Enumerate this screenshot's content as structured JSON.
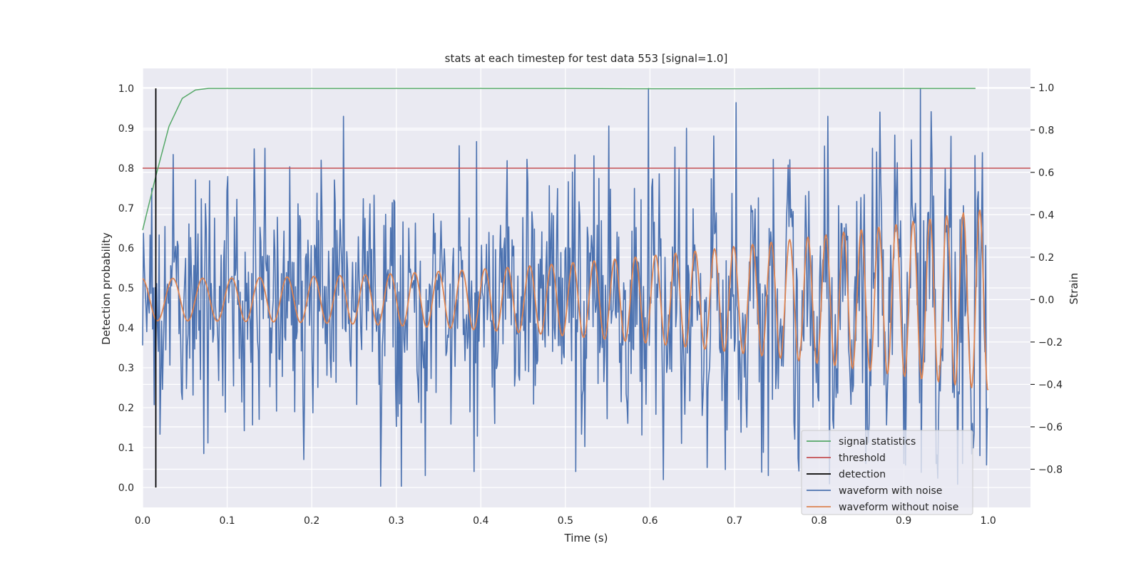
{
  "chart_data": {
    "type": "line",
    "title": "stats at each timestep for test data 553 [signal=1.0]",
    "xlabel": "Time (s)",
    "ylabel": "Detection probability",
    "y2label": "Strain",
    "xlim": [
      0.0,
      1.05
    ],
    "ylim": [
      -0.05,
      1.05
    ],
    "y2lim": [
      -0.98,
      1.09
    ],
    "xticks": [
      "0.0",
      "0.1",
      "0.2",
      "0.3",
      "0.4",
      "0.5",
      "0.6",
      "0.7",
      "0.8",
      "0.9",
      "1.0"
    ],
    "yticks": [
      "0.0",
      "0.1",
      "0.2",
      "0.3",
      "0.4",
      "0.5",
      "0.6",
      "0.7",
      "0.8",
      "0.9",
      "1.0"
    ],
    "y2ticks": [
      "−0.8",
      "−0.6",
      "−0.4",
      "−0.2",
      "0.0",
      "0.2",
      "0.4",
      "0.6",
      "0.8",
      "1.0"
    ],
    "grid": true,
    "legend_position": "lower-right",
    "series": [
      {
        "name": "signal statistics",
        "axis": "left",
        "color": "#55a868",
        "x": [
          0.0,
          0.0156,
          0.0312,
          0.0469,
          0.0625,
          0.0781,
          0.1,
          0.2,
          0.3,
          0.4,
          0.5,
          0.6,
          0.7,
          0.8,
          0.9,
          0.985
        ],
        "y": [
          0.645,
          0.78,
          0.905,
          0.975,
          0.996,
          1.0,
          1.0,
          1.0,
          1.0,
          1.0,
          1.0,
          0.999,
          0.999,
          1.0,
          1.0,
          1.0
        ]
      },
      {
        "name": "threshold",
        "axis": "left",
        "color": "#c44e52",
        "x": [
          0.0,
          1.05
        ],
        "y": [
          0.8,
          0.8
        ]
      },
      {
        "name": "detection",
        "axis": "left",
        "color": "#000000",
        "x": [
          0.0156,
          0.0156
        ],
        "y": [
          0.0,
          1.0
        ]
      },
      {
        "name": "waveform with noise",
        "axis": "right",
        "color": "#4c72b0",
        "generated": "noise around clean waveform, spikes up to 1.0 and down to -0.9",
        "x_range": [
          0.0,
          1.0
        ],
        "n_points": 1024
      },
      {
        "name": "waveform without noise",
        "axis": "right",
        "color": "#dd8452",
        "generated": "chirp, amplitude 0.1 rising to 0.43, frequency 27 Hz rising to 52 Hz",
        "x_range": [
          0.0,
          1.0
        ],
        "n_points": 1024
      }
    ],
    "noise_spikes": [
      [
        0.238,
        0.93
      ],
      [
        0.598,
        1.0
      ],
      [
        0.92,
        1.0
      ],
      [
        0.643,
        0.9
      ],
      [
        0.81,
        0.93
      ],
      [
        0.956,
        0.88
      ],
      [
        0.863,
        0.85
      ],
      [
        0.145,
        0.85
      ],
      [
        0.334,
        0.03
      ],
      [
        0.392,
        0.04
      ],
      [
        0.512,
        0.04
      ],
      [
        0.668,
        0.05
      ],
      [
        0.74,
        0.03
      ],
      [
        0.855,
        0.06
      ],
      [
        0.9,
        0.06
      ],
      [
        0.938,
        0.06
      ],
      [
        0.97,
        0.06
      ],
      [
        0.99,
        0.08
      ],
      [
        0.072,
        0.085
      ],
      [
        0.191,
        0.07
      ]
    ]
  }
}
